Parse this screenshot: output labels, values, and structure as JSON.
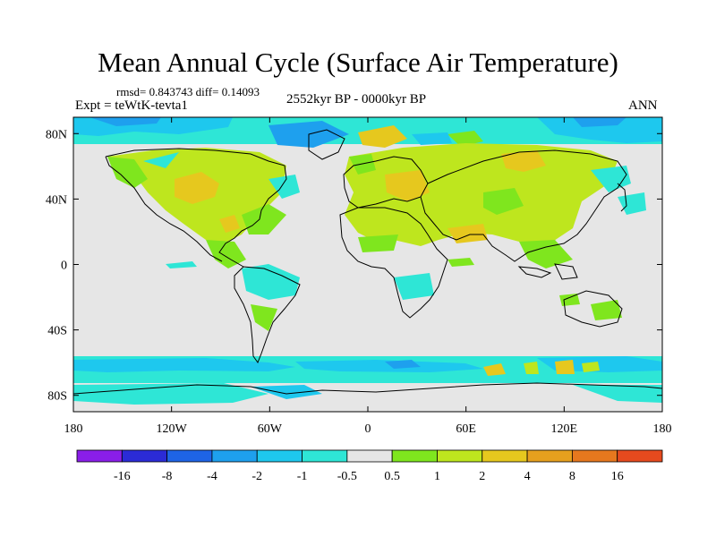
{
  "title": "Mean Annual Cycle (Surface Air Temperature)",
  "stats": "rmsd= 0.843743 diff= 0.14093",
  "experiment": "Expt = teWtK-tevta1",
  "period": "2552kyr BP - 0000kyr BP",
  "season": "ANN",
  "map": {
    "projection": "cylindrical equidistant",
    "lon_range": [
      -180,
      180
    ],
    "lat_range": [
      -90,
      90
    ],
    "lon_ticks": [
      {
        "value": -180,
        "label": "180"
      },
      {
        "value": -120,
        "label": "120W"
      },
      {
        "value": -60,
        "label": "60W"
      },
      {
        "value": 0,
        "label": "0"
      },
      {
        "value": 60,
        "label": "60E"
      },
      {
        "value": 120,
        "label": "120E"
      },
      {
        "value": 180,
        "label": "180"
      }
    ],
    "lat_ticks": [
      {
        "value": 80,
        "label": "80N"
      },
      {
        "value": 40,
        "label": "40N"
      },
      {
        "value": 0,
        "label": "0"
      },
      {
        "value": -40,
        "label": "40S"
      },
      {
        "value": -80,
        "label": "80S"
      }
    ]
  },
  "colorbar": {
    "colors": [
      "#8a1ee8",
      "#2b2bd6",
      "#1e64e6",
      "#1ea0ee",
      "#1ec8ee",
      "#2ee6d6",
      "#e6e6e6",
      "#7fe61e",
      "#bee61e",
      "#e6c81e",
      "#e6a01e",
      "#e6781e",
      "#e64a1e"
    ],
    "labels": [
      "-16",
      "-8",
      "-4",
      "-2",
      "-1",
      "-0.5",
      "0.5",
      "1",
      "2",
      "4",
      "8",
      "16"
    ]
  },
  "colors": {
    "neutral": "#e6e6e6",
    "coast": "#000000"
  }
}
